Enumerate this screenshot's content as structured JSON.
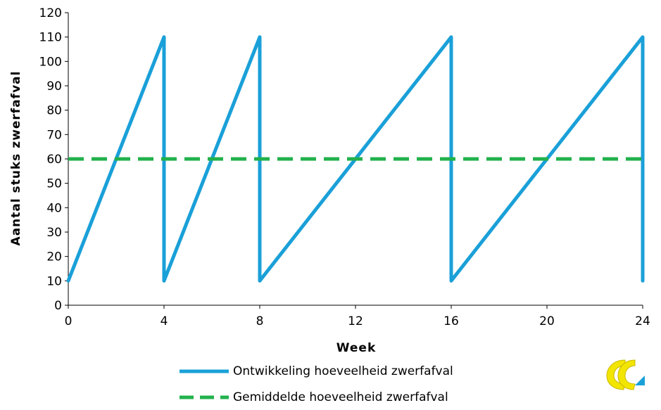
{
  "chart_data": {
    "type": "line",
    "xlabel": "Week",
    "ylabel": "Aantal stuks zwerfafval",
    "xlim": [
      0,
      24
    ],
    "ylim": [
      0,
      120
    ],
    "x_ticks": [
      0,
      4,
      8,
      12,
      16,
      20,
      24
    ],
    "y_ticks": [
      0,
      10,
      20,
      30,
      40,
      50,
      60,
      70,
      80,
      90,
      100,
      110,
      120
    ],
    "grid": false,
    "legend_position": "bottom",
    "series": [
      {
        "name": "Ontwikkeling hoeveelheid zwerfafval",
        "color": "#1aa0d8",
        "style": "solid",
        "points": [
          [
            0,
            10
          ],
          [
            4,
            110
          ],
          [
            4,
            10
          ],
          [
            8,
            110
          ],
          [
            8,
            10
          ],
          [
            16,
            110
          ],
          [
            16,
            10
          ],
          [
            24,
            110
          ],
          [
            24,
            10
          ]
        ]
      },
      {
        "name": "Gemiddelde hoeveelheid zwerfafval",
        "color": "#22b14c",
        "style": "dashed",
        "points": [
          [
            0,
            60
          ],
          [
            24,
            60
          ]
        ]
      }
    ]
  },
  "logo": {
    "name": "logo-icon",
    "colors": [
      "#f2e500",
      "#1aa0d8"
    ]
  }
}
